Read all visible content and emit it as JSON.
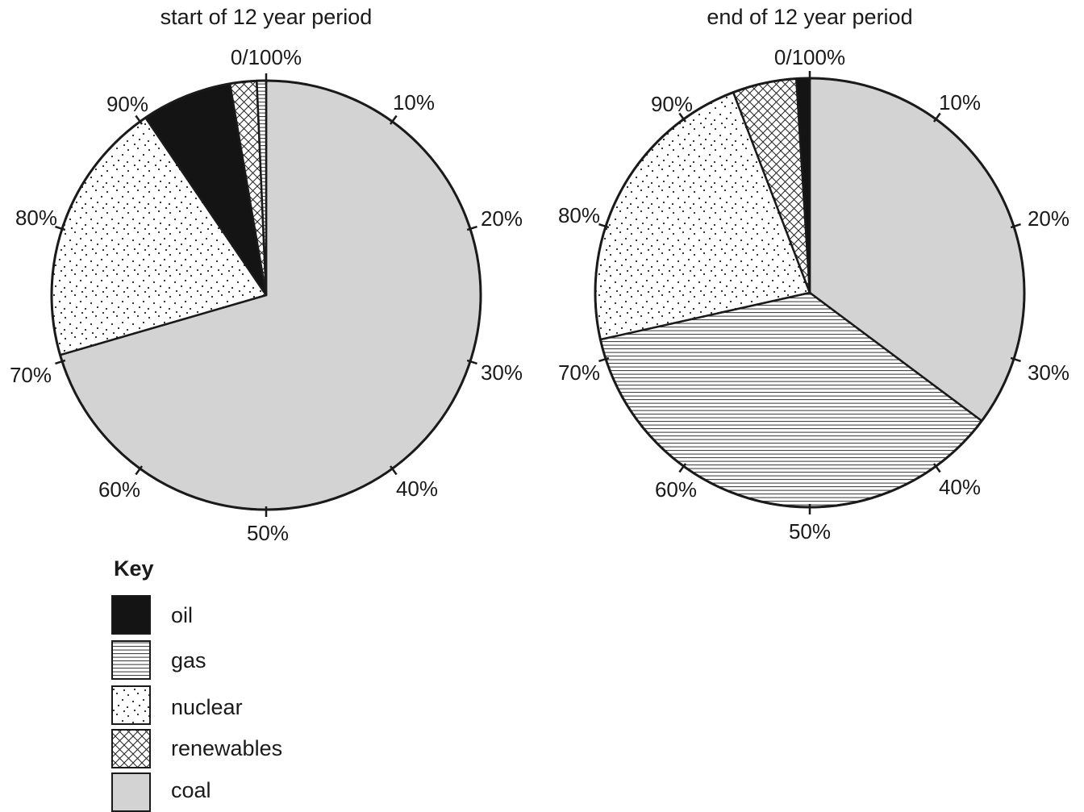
{
  "chart_data": [
    {
      "type": "pie",
      "title": "start of 12 year period",
      "start_label": "0/100%",
      "tick_labels": [
        "10%",
        "20%",
        "30%",
        "40%",
        "50%",
        "60%",
        "70%",
        "80%",
        "90%"
      ],
      "slices": [
        {
          "label": "coal",
          "value": 70.5
        },
        {
          "label": "nuclear",
          "value": 20.0
        },
        {
          "label": "oil",
          "value": 6.8
        },
        {
          "label": "renewables",
          "value": 2.0
        },
        {
          "label": "gas",
          "value": 0.7
        }
      ]
    },
    {
      "type": "pie",
      "title": "end of 12 year period",
      "start_label": "0/100%",
      "tick_labels": [
        "10%",
        "20%",
        "30%",
        "40%",
        "50%",
        "60%",
        "70%",
        "80%",
        "90%"
      ],
      "slices": [
        {
          "label": "coal",
          "value": 35.2
        },
        {
          "label": "gas",
          "value": 36.3
        },
        {
          "label": "nuclear",
          "value": 22.7
        },
        {
          "label": "renewables",
          "value": 4.8
        },
        {
          "label": "oil",
          "value": 1.0
        }
      ]
    }
  ],
  "key": {
    "title": "Key",
    "items": [
      {
        "label": "oil",
        "fill": "solid-black"
      },
      {
        "label": "gas",
        "fill": "horizontal-lines"
      },
      {
        "label": "nuclear",
        "fill": "dots"
      },
      {
        "label": "renewables",
        "fill": "crosshatch"
      },
      {
        "label": "coal",
        "fill": "light-grey"
      }
    ]
  },
  "colors": {
    "oil": "#141414",
    "coal": "#d3d3d3",
    "outline": "#1a1a1a",
    "background": "#ffffff"
  }
}
